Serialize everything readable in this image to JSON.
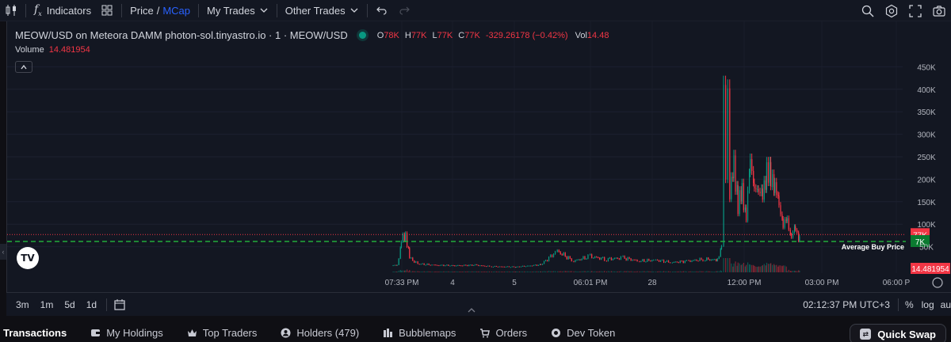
{
  "toolbar": {
    "indicators_label": "Indicators",
    "price_label": "Price",
    "slash": "/",
    "mcap_label": "MCap",
    "my_trades_label": "My Trades",
    "other_trades_label": "Other Trades"
  },
  "legend": {
    "title": "MEOW/USD on Meteora DAMM photon-sol.tinyastro.io · 1 · MEOW/USD",
    "o_key": "O",
    "o_val": "78K",
    "h_key": "H",
    "h_val": "77K",
    "l_key": "L",
    "l_val": "77K",
    "c_key": "C",
    "c_val": "77K",
    "change": "-329.26178 (−0.42%)",
    "vol_key": "Vol",
    "vol_val": "14.48"
  },
  "volume_legend": {
    "label": "Volume",
    "value": "14.481954"
  },
  "chart_data": {
    "type": "candlestick",
    "price_axis_labels": [
      "450K",
      "400K",
      "350K",
      "300K",
      "250K",
      "200K",
      "150K",
      "100K",
      "50K"
    ],
    "time_axis_labels": [
      "07:33 PM",
      "4",
      "5",
      "06:01 PM",
      "28",
      "12:00 PM",
      "03:00 PM",
      "06:00 P"
    ],
    "ylim": [
      0,
      450000
    ],
    "current_price_label": "77K",
    "current_price": 77000,
    "average_buy_label": "7K",
    "average_buy_price": 7000,
    "average_buy_text": "Average Buy Price",
    "volume_label": "14.481954",
    "series": [
      {
        "x": 0.0,
        "y": 8000
      },
      {
        "x": 0.01,
        "y": 10000
      },
      {
        "x": 0.02,
        "y": 60000
      },
      {
        "x": 0.03,
        "y": 78000
      },
      {
        "x": 0.04,
        "y": 25000
      },
      {
        "x": 0.06,
        "y": 12000
      },
      {
        "x": 0.1,
        "y": 9000
      },
      {
        "x": 0.15,
        "y": 8000
      },
      {
        "x": 0.2,
        "y": 9000
      },
      {
        "x": 0.24,
        "y": 6000
      },
      {
        "x": 0.3,
        "y": 5000
      },
      {
        "x": 0.36,
        "y": 10000
      },
      {
        "x": 0.4,
        "y": 40000
      },
      {
        "x": 0.44,
        "y": 18000
      },
      {
        "x": 0.48,
        "y": 28000
      },
      {
        "x": 0.52,
        "y": 22000
      },
      {
        "x": 0.56,
        "y": 25000
      },
      {
        "x": 0.6,
        "y": 18000
      },
      {
        "x": 0.64,
        "y": 20000
      },
      {
        "x": 0.68,
        "y": 15000
      },
      {
        "x": 0.72,
        "y": 18000
      },
      {
        "x": 0.76,
        "y": 22000
      },
      {
        "x": 0.79,
        "y": 20000
      },
      {
        "x": 0.8,
        "y": 60000
      },
      {
        "x": 0.805,
        "y": 380000
      },
      {
        "x": 0.81,
        "y": 200000
      },
      {
        "x": 0.815,
        "y": 420000
      },
      {
        "x": 0.82,
        "y": 150000
      },
      {
        "x": 0.83,
        "y": 250000
      },
      {
        "x": 0.84,
        "y": 130000
      },
      {
        "x": 0.85,
        "y": 180000
      },
      {
        "x": 0.86,
        "y": 110000
      },
      {
        "x": 0.87,
        "y": 260000
      },
      {
        "x": 0.88,
        "y": 160000
      },
      {
        "x": 0.89,
        "y": 200000
      },
      {
        "x": 0.9,
        "y": 140000
      },
      {
        "x": 0.91,
        "y": 250000
      },
      {
        "x": 0.92,
        "y": 180000
      },
      {
        "x": 0.93,
        "y": 200000
      },
      {
        "x": 0.94,
        "y": 130000
      },
      {
        "x": 0.95,
        "y": 110000
      },
      {
        "x": 0.96,
        "y": 95000
      },
      {
        "x": 0.97,
        "y": 85000
      },
      {
        "x": 0.98,
        "y": 78000
      },
      {
        "x": 0.99,
        "y": 77000
      }
    ]
  },
  "bottom_bar": {
    "ranges": [
      "3m",
      "1m",
      "5d",
      "1d"
    ],
    "clock": "02:12:37 PM UTC+3",
    "percent_label": "%",
    "log_label": "log",
    "auto_label": "au"
  },
  "tabs": [
    {
      "label": "Transactions",
      "icon": "none"
    },
    {
      "label": "My Holdings",
      "icon": "wallet-icon"
    },
    {
      "label": "Top Traders",
      "icon": "crown-icon"
    },
    {
      "label": "Holders (479)",
      "icon": "user-icon"
    },
    {
      "label": "Bubblemaps",
      "icon": "bars-icon"
    },
    {
      "label": "Orders",
      "icon": "cart-icon"
    },
    {
      "label": "Dev Token",
      "icon": "coin-icon"
    }
  ],
  "quick_swap_label": "Quick Swap",
  "colors": {
    "up": "#089981",
    "down": "#f23645",
    "accent": "#2962ff",
    "avg_line": "#22ab3b",
    "background": "#131722"
  }
}
